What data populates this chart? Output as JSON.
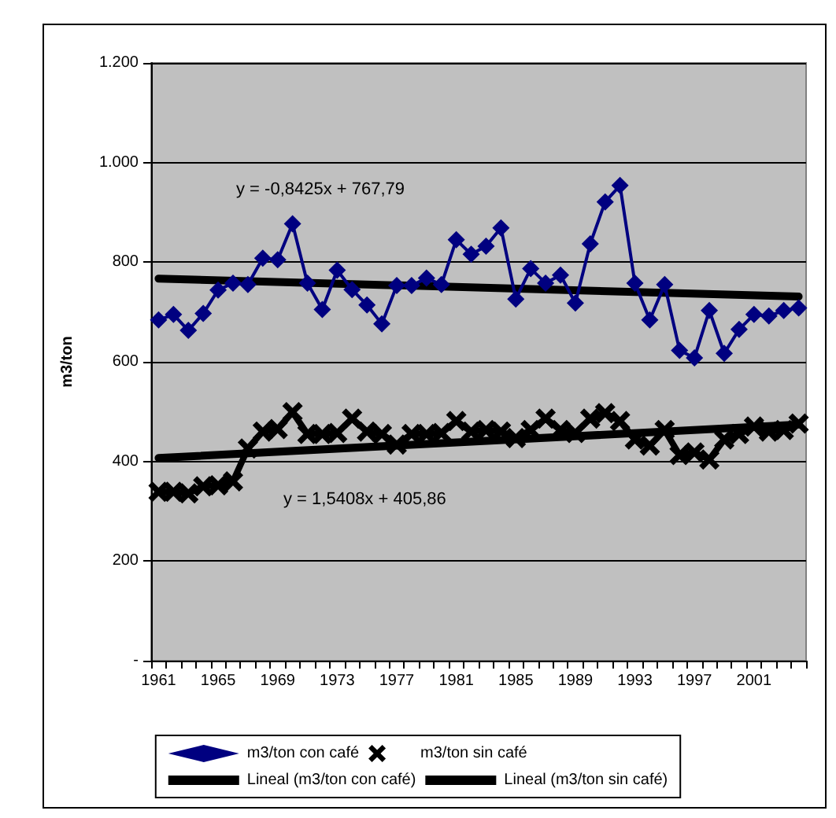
{
  "chart_data": {
    "type": "line",
    "categories": [
      "1961",
      null,
      null,
      null,
      "1965",
      null,
      null,
      null,
      "1969",
      null,
      null,
      null,
      "1973",
      null,
      null,
      null,
      "1977",
      null,
      null,
      null,
      "1981",
      null,
      null,
      null,
      "1985",
      null,
      null,
      null,
      "1989",
      null,
      null,
      null,
      "1993",
      null,
      null,
      null,
      "1997",
      null,
      null,
      null,
      "2001",
      null,
      null,
      null
    ],
    "ylabel": "m3/ton",
    "series": [
      {
        "name": "m3/ton con café",
        "color": "#000080",
        "marker": "diamond",
        "values": [
          684,
          695,
          663,
          697,
          744,
          758,
          755,
          808,
          805,
          877,
          758,
          705,
          784,
          745,
          714,
          676,
          753,
          753,
          768,
          755,
          845,
          816,
          832,
          869,
          726,
          787,
          758,
          774,
          718,
          837,
          921,
          954,
          758,
          684,
          755,
          623,
          608,
          703,
          617,
          665,
          695,
          692,
          703,
          708
        ]
      },
      {
        "name": "m3/ton sin café",
        "color": "#000000",
        "marker": "cross",
        "values": [
          339,
          339,
          336,
          350,
          352,
          360,
          426,
          460,
          465,
          499,
          455,
          455,
          457,
          486,
          460,
          455,
          434,
          455,
          455,
          457,
          481,
          460,
          463,
          460,
          447,
          463,
          486,
          463,
          457,
          486,
          497,
          481,
          444,
          432,
          463,
          413,
          418,
          404,
          444,
          455,
          470,
          460,
          463,
          476
        ]
      },
      {
        "name": "Lineal (m3/ton con café)",
        "color": "#000000",
        "marker": "none",
        "values": [
          767,
          null,
          null,
          null,
          null,
          null,
          null,
          null,
          null,
          null,
          null,
          null,
          null,
          null,
          null,
          null,
          null,
          null,
          null,
          null,
          null,
          null,
          null,
          null,
          null,
          null,
          null,
          null,
          null,
          null,
          null,
          null,
          null,
          null,
          null,
          null,
          null,
          null,
          null,
          null,
          null,
          null,
          null,
          731
        ]
      },
      {
        "name": "Lineal (m3/ton sin café)",
        "color": "#000000",
        "marker": "none",
        "values": [
          407,
          null,
          null,
          null,
          null,
          null,
          null,
          null,
          null,
          null,
          null,
          null,
          null,
          null,
          null,
          null,
          null,
          null,
          null,
          null,
          null,
          null,
          null,
          null,
          null,
          null,
          null,
          null,
          null,
          null,
          null,
          null,
          null,
          null,
          null,
          null,
          null,
          null,
          null,
          null,
          null,
          null,
          null,
          474
        ]
      }
    ],
    "ylim": [
      0,
      1200
    ],
    "yticks": [
      {
        "value": 0,
        "label": "-"
      },
      200,
      400,
      600,
      800,
      {
        "value": 1000,
        "label": "1.000"
      },
      {
        "value": 1200,
        "label": "1.200"
      }
    ],
    "grid": "y",
    "legend": "bottom",
    "line_style": "solid",
    "annotations": [
      "y = -0,8425x + 767,79",
      "y = 1,5408x + 405,86"
    ]
  }
}
